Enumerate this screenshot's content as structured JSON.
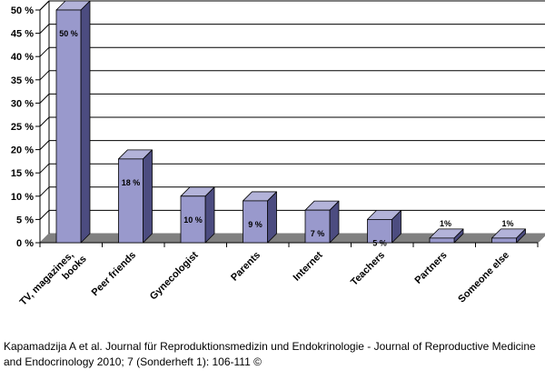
{
  "chart_data": {
    "type": "bar",
    "title": "",
    "xlabel": "",
    "ylabel": "",
    "categories": [
      [
        "TV, magazines,",
        "books"
      ],
      [
        "Peer friends"
      ],
      [
        "Gynecologist"
      ],
      [
        "Parents"
      ],
      [
        "Internet"
      ],
      [
        "Teachers"
      ],
      [
        "Partners"
      ],
      [
        "Someone else"
      ]
    ],
    "values": [
      50,
      18,
      10,
      9,
      7,
      5,
      1,
      1
    ],
    "data_labels": [
      "50 %",
      "18 %",
      "10 %",
      "9 %",
      "7 %",
      "5 %",
      "1%",
      "1%"
    ],
    "ylim": [
      0,
      50
    ],
    "yticks": [
      0,
      5,
      10,
      15,
      20,
      25,
      30,
      35,
      40,
      45,
      50
    ],
    "ytick_labels": [
      "0 %",
      "5 %",
      "10 %",
      "15 %",
      "20 %",
      "25 %",
      "30 %",
      "35 %",
      "40 %",
      "45 %",
      "50 %"
    ],
    "grid": true,
    "legend": "none",
    "colors": {
      "bar_front": "#9999cc",
      "bar_side": "#4c4c80",
      "bar_top": "#b3b3d9",
      "floor": "#808080",
      "outline": "#000000"
    }
  },
  "source": "Kapamadzija A et al. Journal für Reproduktionsmedizin und Endokrinologie - Journal of Reproductive Medicine and Endocrinology 2010; 7 (Sonderheft 1): 106-111 ©"
}
